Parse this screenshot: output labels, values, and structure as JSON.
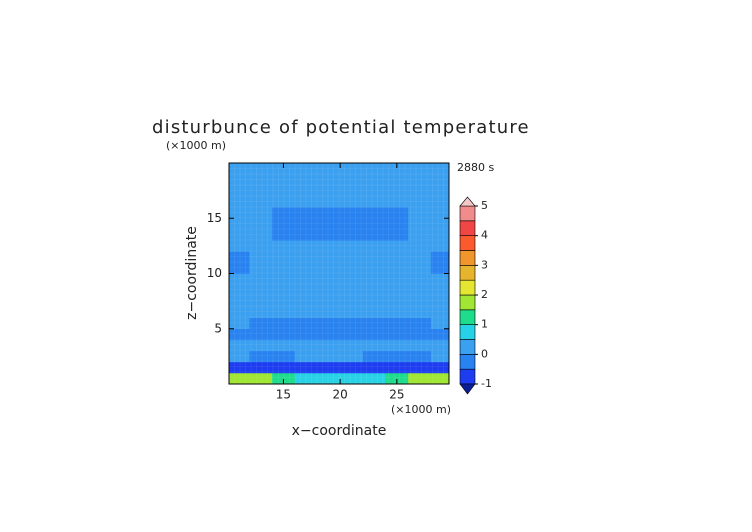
{
  "chart_data": {
    "type": "contour",
    "title": "disturbunce of potential temperature",
    "x_unit": "(×1000 m)",
    "y_unit": "(×1000 m)",
    "xlabel": "x−coordinate",
    "ylabel": "z−coordinate",
    "time_label": "2880 s",
    "xlim": [
      10.2,
      29.6
    ],
    "ylim": [
      0,
      20
    ],
    "xticks": [
      15,
      20,
      25
    ],
    "yticks": [
      5,
      10,
      15
    ],
    "x": [
      11,
      13,
      15,
      17,
      19,
      21,
      23,
      25,
      27,
      29
    ],
    "z": [
      0.5,
      1.5,
      2.5,
      3.5,
      4.5,
      5.5,
      6.5,
      7.5,
      8.5,
      9.5,
      10.5,
      11.5,
      12.5,
      13.5,
      14.5,
      15.5,
      16.5,
      17.5,
      18.5,
      19.5
    ],
    "values": [
      [
        1.7,
        1.7,
        1.2,
        0.8,
        0.8,
        0.8,
        0.8,
        1.2,
        1.7,
        1.7
      ],
      [
        -0.6,
        -0.8,
        -0.9,
        -0.9,
        -0.9,
        -0.9,
        -0.9,
        -0.9,
        -0.8,
        -0.6
      ],
      [
        0.2,
        -0.2,
        -0.2,
        0.2,
        0.2,
        0.2,
        -0.2,
        -0.2,
        -0.2,
        0.2
      ],
      [
        0.2,
        0.2,
        0.2,
        0.2,
        0.2,
        0.2,
        0.2,
        0.2,
        0.2,
        0.2
      ],
      [
        -0.2,
        -0.2,
        -0.2,
        -0.2,
        -0.2,
        -0.2,
        -0.2,
        -0.2,
        -0.2,
        -0.2
      ],
      [
        0.2,
        -0.2,
        -0.2,
        -0.2,
        -0.2,
        -0.2,
        -0.2,
        -0.2,
        -0.2,
        0.2
      ],
      [
        0.2,
        0.2,
        0.2,
        0.2,
        0.2,
        0.2,
        0.2,
        0.2,
        0.2,
        0.2
      ],
      [
        0.2,
        0.2,
        0.2,
        0.2,
        0.2,
        0.2,
        0.2,
        0.2,
        0.2,
        0.2
      ],
      [
        0.2,
        0.2,
        0.2,
        0.2,
        0.2,
        0.2,
        0.2,
        0.2,
        0.2,
        0.2
      ],
      [
        0.2,
        0.2,
        0.2,
        0.2,
        0.2,
        0.2,
        0.2,
        0.2,
        0.2,
        0.2
      ],
      [
        -0.2,
        0.2,
        0.2,
        0.2,
        0.2,
        0.2,
        0.2,
        0.2,
        0.2,
        -0.2
      ],
      [
        -0.2,
        0.2,
        0.2,
        0.2,
        0.2,
        0.2,
        0.2,
        0.2,
        0.2,
        -0.2
      ],
      [
        0.2,
        0.2,
        0.2,
        0.2,
        0.2,
        0.2,
        0.2,
        0.2,
        0.2,
        0.2
      ],
      [
        0.2,
        0.2,
        -0.2,
        -0.2,
        -0.2,
        -0.2,
        -0.2,
        -0.2,
        0.2,
        0.2
      ],
      [
        0.2,
        0.2,
        -0.2,
        -0.2,
        -0.2,
        -0.2,
        -0.2,
        -0.2,
        0.2,
        0.2
      ],
      [
        0.2,
        0.2,
        -0.2,
        -0.2,
        -0.2,
        -0.2,
        -0.2,
        -0.2,
        0.2,
        0.2
      ],
      [
        0.2,
        0.2,
        0.2,
        0.2,
        0.2,
        0.2,
        0.2,
        0.2,
        0.2,
        0.2
      ],
      [
        0.2,
        0.2,
        0.2,
        0.2,
        0.2,
        0.2,
        0.2,
        0.2,
        0.2,
        0.2
      ],
      [
        0.2,
        0.2,
        0.2,
        0.2,
        0.2,
        0.2,
        0.2,
        0.2,
        0.2,
        0.2
      ],
      [
        0.2,
        0.2,
        0.2,
        0.2,
        0.2,
        0.2,
        0.2,
        0.2,
        0.2,
        0.2
      ]
    ],
    "levels": [
      -1,
      -0.5,
      0,
      0.5,
      1,
      1.5,
      2,
      2.5,
      3,
      3.5,
      4,
      4.5,
      5
    ],
    "colors": [
      "#1e3cf0",
      "#2882f0",
      "#3ca0f0",
      "#28d2e6",
      "#1edc8c",
      "#a0e632",
      "#e6e632",
      "#e6b42d",
      "#f0962d",
      "#fa5a2d",
      "#f04646",
      "#f08c8c"
    ],
    "under_color": "#0a1e96",
    "over_color": "#f5c8c8",
    "colorbar_ticks": [
      -1,
      0,
      1,
      2,
      3,
      4,
      5
    ]
  }
}
